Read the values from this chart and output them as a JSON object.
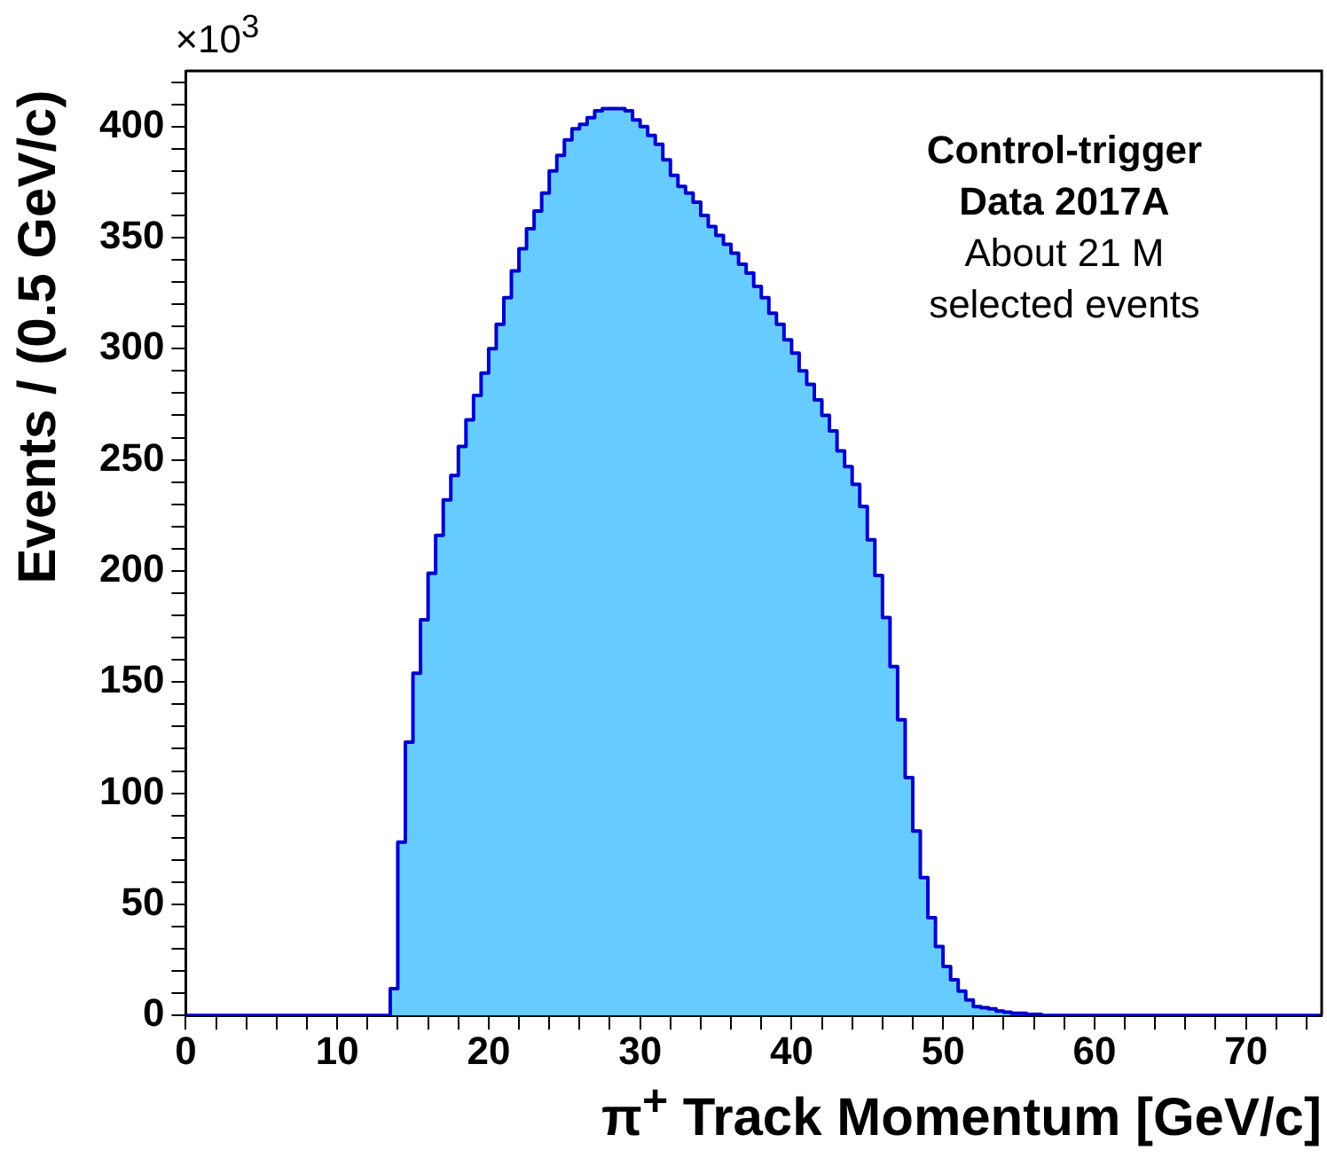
{
  "chart_data": {
    "type": "histogram",
    "xlabel": "π$^{+}$ Track Momentum [GeV/c]",
    "ylabel": "Events / (0.5 GeV/c)",
    "color": "#66ccff",
    "bins": [
      0,
      0.5,
      1,
      1.5,
      2,
      2.5,
      3,
      3.5,
      4,
      4.5,
      5,
      5.5,
      6,
      6.5,
      7,
      7.5,
      8,
      8.5,
      9,
      9.5,
      10,
      10.5,
      11,
      11.5,
      12,
      12.5,
      13,
      13.5,
      14,
      14.5,
      15,
      15.5,
      16,
      16.5,
      17,
      17.5,
      18,
      18.5,
      19,
      19.5,
      20,
      20.5,
      21,
      21.5,
      22,
      22.5,
      23,
      23.5,
      24,
      24.5,
      25,
      25.5,
      26,
      26.5,
      27,
      27.5,
      28,
      28.5,
      29,
      29.5,
      30,
      30.5,
      31,
      31.5,
      32,
      32.5,
      33,
      33.5,
      34,
      34.5,
      35,
      35.5,
      36,
      36.5,
      37,
      37.5,
      38,
      38.5,
      39,
      39.5,
      40,
      40.5,
      41,
      41.5,
      42,
      42.5,
      43,
      43.5,
      44,
      44.5,
      45,
      45.5,
      46,
      46.5,
      47,
      47.5,
      48,
      48.5,
      49,
      49.5,
      50,
      50.5,
      51,
      51.5,
      52,
      52.5,
      53,
      53.5,
      54,
      54.5,
      55,
      55.5,
      56,
      56.5,
      57,
      57.5,
      58,
      58.5,
      59,
      59.5,
      60,
      60.5,
      61,
      61.5,
      62,
      62.5,
      63,
      63.5,
      64,
      64.5,
      65,
      65.5,
      66,
      66.5,
      67,
      67.5,
      68,
      68.5,
      69,
      69.5,
      70,
      70.5,
      71,
      71.5,
      72,
      72.5,
      73,
      73.5,
      74,
      74.5,
      75
    ],
    "values": [
      0,
      0,
      0,
      0,
      0,
      0,
      0,
      0,
      0,
      0,
      0,
      0,
      0,
      0,
      0,
      0,
      0,
      0,
      0,
      0,
      0,
      0,
      0,
      0,
      0,
      0,
      0,
      12,
      78,
      123,
      154,
      178,
      199,
      216,
      232,
      243,
      256,
      268,
      279,
      289,
      300,
      311,
      323,
      335,
      345,
      354,
      362,
      370,
      380,
      387,
      394,
      399,
      401,
      404,
      407,
      408,
      408,
      408,
      407,
      403,
      400,
      396,
      392,
      385,
      378,
      373,
      370,
      366,
      360,
      355,
      351,
      347,
      343,
      338,
      334,
      328,
      323,
      316,
      311,
      304,
      298,
      290,
      284,
      277,
      270,
      263,
      254,
      247,
      239,
      229,
      214,
      198,
      179,
      157,
      133,
      107,
      83,
      62,
      44,
      31,
      22,
      16,
      11,
      7,
      4,
      3.5,
      3,
      2,
      1.5,
      1,
      1,
      0.5,
      0.5,
      0,
      0,
      0,
      0,
      0,
      0,
      0,
      0,
      0,
      0,
      0,
      0,
      0,
      0,
      0,
      0,
      0,
      0,
      0,
      0,
      0,
      0,
      0,
      0,
      0,
      0,
      0,
      0,
      0,
      0,
      0,
      0,
      0,
      0,
      0,
      0,
      0
    ],
    "xlim": [
      0,
      75
    ],
    "ylim": [
      0,
      425
    ],
    "xticks": [
      0,
      {
        "value": 2,
        "label": null
      },
      {
        "value": 4,
        "label": null
      },
      {
        "value": 6,
        "label": null
      },
      {
        "value": 8,
        "label": null
      },
      10,
      {
        "value": 12,
        "label": null
      },
      {
        "value": 14,
        "label": null
      },
      {
        "value": 16,
        "label": null
      },
      {
        "value": 18,
        "label": null
      },
      20,
      {
        "value": 22,
        "label": null
      },
      {
        "value": 24,
        "label": null
      },
      {
        "value": 26,
        "label": null
      },
      {
        "value": 28,
        "label": null
      },
      30,
      {
        "value": 32,
        "label": null
      },
      {
        "value": 34,
        "label": null
      },
      {
        "value": 36,
        "label": null
      },
      {
        "value": 38,
        "label": null
      },
      40,
      {
        "value": 42,
        "label": null
      },
      {
        "value": 44,
        "label": null
      },
      {
        "value": 46,
        "label": null
      },
      {
        "value": 48,
        "label": null
      },
      50,
      {
        "value": 52,
        "label": null
      },
      {
        "value": 54,
        "label": null
      },
      {
        "value": 56,
        "label": null
      },
      {
        "value": 58,
        "label": null
      },
      60,
      {
        "value": 62,
        "label": null
      },
      {
        "value": 64,
        "label": null
      },
      {
        "value": 66,
        "label": null
      },
      {
        "value": 68,
        "label": null
      },
      70,
      {
        "value": 72,
        "label": null
      },
      {
        "value": 74,
        "label": null
      }
    ],
    "yticks": [
      0,
      {
        "value": 10,
        "label": null
      },
      {
        "value": 20,
        "label": null
      },
      {
        "value": 30,
        "label": null
      },
      {
        "value": 40,
        "label": null
      },
      50,
      {
        "value": 60,
        "label": null
      },
      {
        "value": 70,
        "label": null
      },
      {
        "value": 80,
        "label": null
      },
      {
        "value": 90,
        "label": null
      },
      100,
      {
        "value": 110,
        "label": null
      },
      {
        "value": 120,
        "label": null
      },
      {
        "value": 130,
        "label": null
      },
      {
        "value": 140,
        "label": null
      },
      150,
      {
        "value": 160,
        "label": null
      },
      {
        "value": 170,
        "label": null
      },
      {
        "value": 180,
        "label": null
      },
      {
        "value": 190,
        "label": null
      },
      200,
      {
        "value": 210,
        "label": null
      },
      {
        "value": 220,
        "label": null
      },
      {
        "value": 230,
        "label": null
      },
      {
        "value": 240,
        "label": null
      },
      250,
      {
        "value": 260,
        "label": null
      },
      {
        "value": 270,
        "label": null
      },
      {
        "value": 280,
        "label": null
      },
      {
        "value": 290,
        "label": null
      },
      300,
      {
        "value": 310,
        "label": null
      },
      {
        "value": 320,
        "label": null
      },
      {
        "value": 330,
        "label": null
      },
      {
        "value": 340,
        "label": null
      },
      350,
      {
        "value": 360,
        "label": null
      },
      {
        "value": 370,
        "label": null
      },
      {
        "value": 380,
        "label": null
      },
      {
        "value": 390,
        "label": null
      },
      400,
      {
        "value": 410,
        "label": null
      },
      {
        "value": 420,
        "label": null
      }
    ],
    "annotations": [
      "×10$^{3}$",
      "Control-trigger",
      "Data 2017A",
      "About 21 M",
      "selected events"
    ]
  }
}
